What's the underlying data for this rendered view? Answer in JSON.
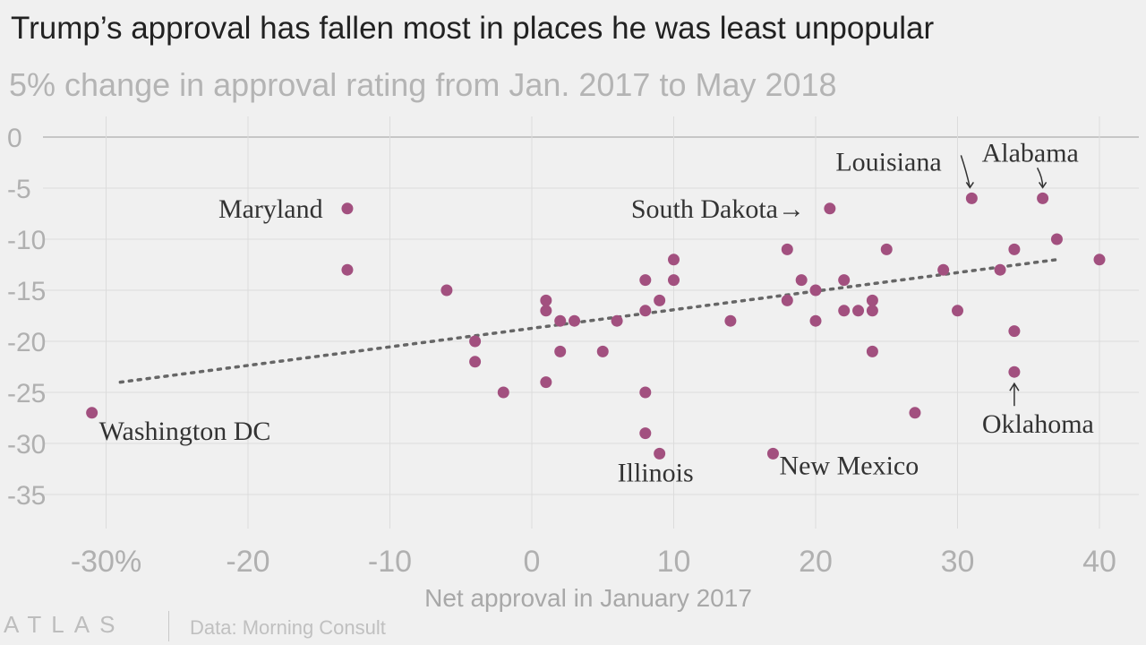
{
  "header": {
    "title": "Trump’s approval has fallen most in places he was least unpopular",
    "subtitle": "5% change in approval rating from Jan. 2017 to May 2018"
  },
  "footer": {
    "brand": "ATLAS",
    "source": "Data: Morning Consult"
  },
  "colors": {
    "point": "#a2507f",
    "trend": "#666666",
    "grid": "#dcdcdc",
    "zero_line": "#b8b8b8"
  },
  "chart_data": {
    "type": "scatter",
    "title": "Trump’s approval has fallen most in places he was least unpopular",
    "subtitle": "5% change in approval rating from Jan. 2017 to May 2018",
    "xlabel": "Net approval in January 2017",
    "ylabel": "",
    "xlim": [
      -32,
      41
    ],
    "ylim": [
      -37,
      0
    ],
    "x_ticks": [
      -30,
      -20,
      -10,
      0,
      10,
      20,
      30,
      40
    ],
    "x_tick_labels": [
      "-30%",
      "-20",
      "-10",
      "0",
      "10",
      "20",
      "30",
      "40"
    ],
    "y_ticks": [
      0,
      -5,
      -10,
      -15,
      -20,
      -25,
      -30,
      -35
    ],
    "y_tick_labels": [
      "0",
      "-5",
      "-10",
      "-15",
      "-20",
      "-25",
      "-30",
      "-35"
    ],
    "grid": true,
    "points": [
      {
        "x": -31,
        "y": -27
      },
      {
        "x": -13,
        "y": -7
      },
      {
        "x": -13,
        "y": -13
      },
      {
        "x": -6,
        "y": -15
      },
      {
        "x": -4,
        "y": -20
      },
      {
        "x": -4,
        "y": -22
      },
      {
        "x": -2,
        "y": -25
      },
      {
        "x": 1,
        "y": -16
      },
      {
        "x": 1,
        "y": -17
      },
      {
        "x": 1,
        "y": -24
      },
      {
        "x": 2,
        "y": -18
      },
      {
        "x": 2,
        "y": -21
      },
      {
        "x": 3,
        "y": -18
      },
      {
        "x": 5,
        "y": -21
      },
      {
        "x": 6,
        "y": -18
      },
      {
        "x": 8,
        "y": -14
      },
      {
        "x": 8,
        "y": -17
      },
      {
        "x": 8,
        "y": -25
      },
      {
        "x": 8,
        "y": -29
      },
      {
        "x": 9,
        "y": -16
      },
      {
        "x": 9,
        "y": -31
      },
      {
        "x": 10,
        "y": -12
      },
      {
        "x": 10,
        "y": -14
      },
      {
        "x": 14,
        "y": -18
      },
      {
        "x": 17,
        "y": -31
      },
      {
        "x": 18,
        "y": -11
      },
      {
        "x": 18,
        "y": -16
      },
      {
        "x": 19,
        "y": -14
      },
      {
        "x": 20,
        "y": -15
      },
      {
        "x": 20,
        "y": -18
      },
      {
        "x": 21,
        "y": -7
      },
      {
        "x": 22,
        "y": -14
      },
      {
        "x": 22,
        "y": -17
      },
      {
        "x": 23,
        "y": -17
      },
      {
        "x": 24,
        "y": -16
      },
      {
        "x": 24,
        "y": -17
      },
      {
        "x": 24,
        "y": -21
      },
      {
        "x": 25,
        "y": -11
      },
      {
        "x": 27,
        "y": -27
      },
      {
        "x": 29,
        "y": -13
      },
      {
        "x": 30,
        "y": -17
      },
      {
        "x": 31,
        "y": -6
      },
      {
        "x": 33,
        "y": -13
      },
      {
        "x": 34,
        "y": -11
      },
      {
        "x": 34,
        "y": -19
      },
      {
        "x": 34,
        "y": -23
      },
      {
        "x": 36,
        "y": -6
      },
      {
        "x": 37,
        "y": -10
      },
      {
        "x": 40,
        "y": -12
      }
    ],
    "trendline": {
      "x1": -29,
      "y1": -24,
      "x2": 37,
      "y2": -12,
      "style": "dotted"
    },
    "annotations": [
      {
        "label": "Maryland",
        "x": -13,
        "y": -7
      },
      {
        "label": "Washington DC",
        "x": -31,
        "y": -27
      },
      {
        "label": "South Dakota→",
        "x": 21,
        "y": -7
      },
      {
        "label": "Louisiana",
        "x": 31,
        "y": -6
      },
      {
        "label": "Alabama",
        "x": 36,
        "y": -6
      },
      {
        "label": "Oklahoma",
        "x": 34,
        "y": -23
      },
      {
        "label": "Illinois",
        "x": 9,
        "y": -31
      },
      {
        "label": "New Mexico",
        "x": 17,
        "y": -31
      }
    ]
  }
}
